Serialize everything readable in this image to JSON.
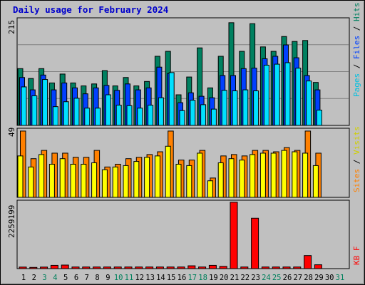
{
  "title": "Daily usage for February 2024",
  "colors": {
    "background": "#c0c0c0",
    "hits": "#008060",
    "files": "#0040ff",
    "pages": "#00e0ff",
    "visits": "#ff8000",
    "sites": "#ffff00",
    "kbytes": "#ff0000",
    "weekday_label": "#000000",
    "weekend_label": "#00805c"
  },
  "legend_top": [
    {
      "label": "Pages",
      "color": "#00c0e0"
    },
    {
      "label": " / ",
      "color": "#000000"
    },
    {
      "label": "Files",
      "color": "#0040ff"
    },
    {
      "label": " / ",
      "color": "#000000"
    },
    {
      "label": "Hits",
      "color": "#008060"
    }
  ],
  "legend_mid": [
    {
      "label": "Sites",
      "color": "#ff8000"
    },
    {
      "label": " / ",
      "color": "#000000"
    },
    {
      "label": "Visits",
      "color": "#d0d000"
    }
  ],
  "legend_bottom": [
    {
      "label": "KB F",
      "color": "#ff0000"
    }
  ],
  "chart_data": [
    {
      "type": "bar",
      "title": "Daily usage for February 2024",
      "panel": "hits-files-pages",
      "ymax_label": "215",
      "ylim": [
        0,
        215
      ],
      "categories": [
        "1",
        "2",
        "3",
        "4",
        "5",
        "6",
        "7",
        "8",
        "9",
        "10",
        "11",
        "12",
        "13",
        "14",
        "15",
        "16",
        "17",
        "18",
        "19",
        "20",
        "21",
        "22",
        "23",
        "24",
        "25",
        "26",
        "27",
        "28",
        "29",
        "30",
        "31"
      ],
      "series": [
        {
          "name": "Hits",
          "values": [
            115,
            95,
            115,
            86,
            104,
            86,
            80,
            84,
            111,
            80,
            97,
            80,
            89,
            140,
            150,
            62,
            98,
            157,
            76,
            140,
            208,
            150,
            206,
            159,
            150,
            180,
            170,
            172,
            87,
            null,
            null
          ]
        },
        {
          "name": "Files",
          "values": [
            97,
            72,
            102,
            72,
            86,
            76,
            64,
            76,
            81,
            71,
            84,
            72,
            76,
            118,
            105,
            46,
            66,
            59,
            56,
            101,
            101,
            115,
            116,
            135,
            140,
            163,
            137,
            101,
            72,
            null,
            null
          ]
        },
        {
          "name": "Pages",
          "values": [
            78,
            60,
            93,
            38,
            48,
            55,
            35,
            35,
            62,
            41,
            40,
            35,
            41,
            56,
            107,
            30,
            51,
            42,
            33,
            71,
            70,
            72,
            70,
            122,
            124,
            127,
            116,
            90,
            31,
            null,
            null
          ]
        }
      ],
      "xlabel": "",
      "ylabel": ""
    },
    {
      "type": "bar",
      "panel": "visits-sites",
      "ymax_label": "49",
      "ylim": [
        0,
        49
      ],
      "categories": [
        "1",
        "2",
        "3",
        "4",
        "5",
        "6",
        "7",
        "8",
        "9",
        "10",
        "11",
        "12",
        "13",
        "14",
        "15",
        "16",
        "17",
        "18",
        "19",
        "20",
        "21",
        "22",
        "23",
        "24",
        "25",
        "26",
        "27",
        "28",
        "29",
        "30",
        "31"
      ],
      "series": [
        {
          "name": "Visits",
          "values": [
            48,
            28,
            34,
            32,
            32,
            29,
            29,
            34,
            22,
            24,
            28,
            29,
            31,
            33,
            48,
            27,
            27,
            34,
            14,
            30,
            31,
            30,
            34,
            34,
            33,
            36,
            34,
            48,
            32,
            null,
            null
          ]
        },
        {
          "name": "Sites",
          "values": [
            30,
            22,
            31,
            24,
            28,
            24,
            24,
            25,
            20,
            22,
            23,
            26,
            29,
            30,
            37,
            24,
            23,
            32,
            12,
            25,
            28,
            27,
            31,
            32,
            32,
            34,
            33,
            32,
            23,
            null,
            null
          ]
        }
      ],
      "xlabel": "",
      "ylabel": ""
    },
    {
      "type": "bar",
      "panel": "kbytes",
      "ymax_label": "2259199",
      "ylim": [
        0,
        2259199
      ],
      "categories": [
        "1",
        "2",
        "3",
        "4",
        "5",
        "6",
        "7",
        "8",
        "9",
        "10",
        "11",
        "12",
        "13",
        "14",
        "15",
        "16",
        "17",
        "18",
        "19",
        "20",
        "21",
        "22",
        "23",
        "24",
        "25",
        "26",
        "27",
        "28",
        "29",
        "30",
        "31"
      ],
      "series": [
        {
          "name": "KBytes",
          "values": [
            52000,
            41000,
            52000,
            110000,
            120000,
            55000,
            55000,
            55000,
            55000,
            55000,
            55000,
            55000,
            55000,
            55000,
            55000,
            55000,
            95000,
            55000,
            110000,
            75000,
            2240000,
            55000,
            1700000,
            55000,
            55000,
            55000,
            55000,
            440000,
            130000,
            null,
            null
          ]
        }
      ],
      "xlabel": "",
      "ylabel": ""
    }
  ],
  "days": [
    {
      "label": "1",
      "weekend": false
    },
    {
      "label": "2",
      "weekend": false
    },
    {
      "label": "3",
      "weekend": true
    },
    {
      "label": "4",
      "weekend": true
    },
    {
      "label": "5",
      "weekend": false
    },
    {
      "label": "6",
      "weekend": false
    },
    {
      "label": "7",
      "weekend": false
    },
    {
      "label": "8",
      "weekend": false
    },
    {
      "label": "9",
      "weekend": false
    },
    {
      "label": "10",
      "weekend": true
    },
    {
      "label": "11",
      "weekend": true
    },
    {
      "label": "12",
      "weekend": false
    },
    {
      "label": "13",
      "weekend": false
    },
    {
      "label": "14",
      "weekend": false
    },
    {
      "label": "15",
      "weekend": false
    },
    {
      "label": "16",
      "weekend": false
    },
    {
      "label": "17",
      "weekend": true
    },
    {
      "label": "18",
      "weekend": true
    },
    {
      "label": "19",
      "weekend": false
    },
    {
      "label": "20",
      "weekend": false
    },
    {
      "label": "21",
      "weekend": false
    },
    {
      "label": "22",
      "weekend": false
    },
    {
      "label": "23",
      "weekend": false
    },
    {
      "label": "24",
      "weekend": true
    },
    {
      "label": "25",
      "weekend": true
    },
    {
      "label": "26",
      "weekend": false
    },
    {
      "label": "27",
      "weekend": false
    },
    {
      "label": "28",
      "weekend": false
    },
    {
      "label": "29",
      "weekend": false
    },
    {
      "label": "30",
      "weekend": false
    },
    {
      "label": "31",
      "weekend": true
    }
  ]
}
